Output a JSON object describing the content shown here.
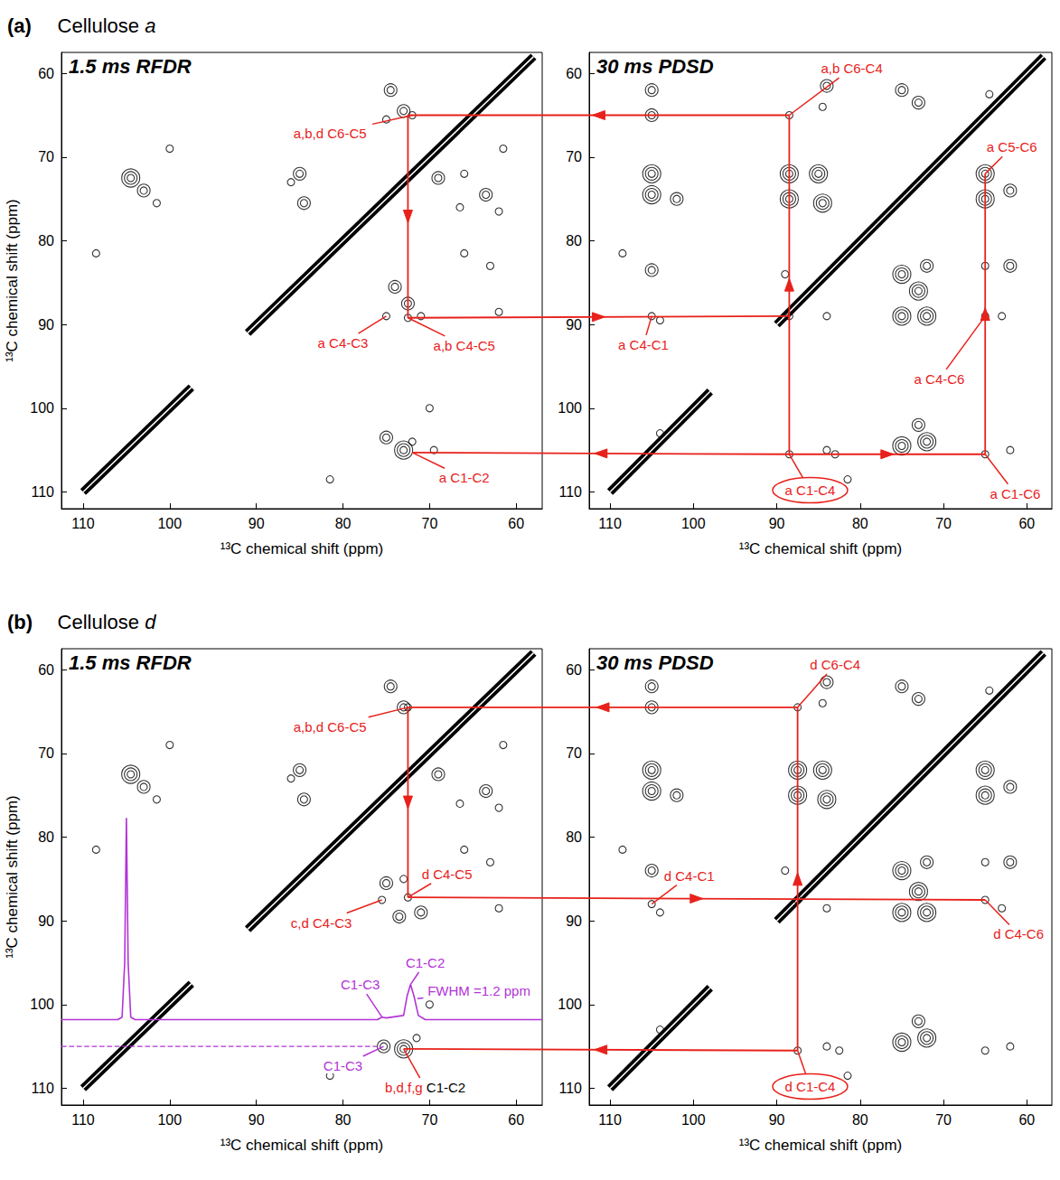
{
  "chart_data": [
    {
      "type": "scatter",
      "group_label": "(a)",
      "group_title": "Cellulose a",
      "title": "1.5 ms RFDR",
      "x_label": "¹³C chemical shift (ppm)",
      "y_label": "¹³C chemical shift (ppm)",
      "xlim": [
        112.5,
        57
      ],
      "ylim": [
        112,
        57.5
      ],
      "xticks": [
        60,
        70,
        80,
        90,
        100,
        110
      ],
      "yticks": [
        60,
        70,
        80,
        90,
        100,
        110
      ],
      "diagonal": [
        [
          110,
          97.5
        ],
        [
          91,
          58
        ]
      ],
      "peaks": [
        [
          104.5,
          72.5,
          3
        ],
        [
          103,
          74,
          2
        ],
        [
          101.5,
          75.5,
          1
        ],
        [
          108.5,
          81.5,
          1
        ],
        [
          100,
          69,
          1
        ],
        [
          85,
          72,
          2
        ],
        [
          84.5,
          75.5,
          2
        ],
        [
          86,
          73,
          1
        ],
        [
          74.5,
          62,
          2
        ],
        [
          73,
          64.5,
          2
        ],
        [
          75,
          65.5,
          1
        ],
        [
          72,
          65,
          1
        ],
        [
          61.5,
          69,
          1
        ],
        [
          69,
          72.5,
          2
        ],
        [
          66,
          72,
          1
        ],
        [
          63.5,
          74.5,
          2
        ],
        [
          62,
          76.5,
          1
        ],
        [
          66.5,
          76,
          1
        ],
        [
          74,
          85.5,
          2
        ],
        [
          72.5,
          87.5,
          2
        ],
        [
          75,
          89,
          1
        ],
        [
          72.5,
          89.2,
          1
        ],
        [
          71,
          89,
          1
        ],
        [
          66,
          81.5,
          1
        ],
        [
          63,
          83,
          1
        ],
        [
          62,
          88.5,
          1
        ],
        [
          81.5,
          108.5,
          1
        ],
        [
          70,
          100,
          1
        ],
        [
          73,
          105,
          3
        ],
        [
          75,
          103.5,
          2
        ],
        [
          72,
          104,
          1
        ],
        [
          69.5,
          105,
          1
        ]
      ],
      "annotations": [
        {
          "text": "a,b,d C6-C5",
          "color": "#e8211b",
          "x": 72,
          "y": 65,
          "label_x": 81.5,
          "label_y": 67.2
        },
        {
          "text": "a C4-C3",
          "color": "#e8211b",
          "x": 75,
          "y": 89,
          "label_x": 80,
          "label_y": 92.2
        },
        {
          "text": "a,b C4-C5",
          "color": "#e8211b",
          "x": 72.5,
          "y": 89.2,
          "label_x": 66,
          "label_y": 92.5
        },
        {
          "text": "a C1-C2",
          "color": "#e8211b",
          "x": 72,
          "y": 105.3,
          "label_x": 66,
          "label_y": 108.3
        }
      ]
    },
    {
      "type": "scatter",
      "title": "30 ms PDSD",
      "x_label": "¹³C chemical shift (ppm)",
      "xlim": [
        112.5,
        57
      ],
      "ylim": [
        112,
        57.5
      ],
      "xticks": [
        60,
        70,
        80,
        90,
        100,
        110
      ],
      "yticks": [
        60,
        70,
        80,
        90,
        100,
        110
      ],
      "diagonal": [
        [
          110,
          98
        ],
        [
          90,
          58
        ]
      ],
      "peaks": [
        [
          105,
          62,
          2
        ],
        [
          105,
          65,
          2
        ],
        [
          88.5,
          65,
          1
        ],
        [
          84,
          61.5,
          2
        ],
        [
          84.5,
          64,
          1
        ],
        [
          75,
          62,
          2
        ],
        [
          73,
          63.5,
          2
        ],
        [
          64.5,
          62.5,
          1
        ],
        [
          105,
          72,
          3
        ],
        [
          105,
          74.5,
          3
        ],
        [
          102,
          75,
          2
        ],
        [
          88.5,
          72,
          3
        ],
        [
          88.5,
          75,
          3
        ],
        [
          85,
          72,
          3
        ],
        [
          84.5,
          75.5,
          3
        ],
        [
          65,
          72,
          3
        ],
        [
          65,
          75,
          3
        ],
        [
          62,
          74,
          2
        ],
        [
          108.5,
          81.5,
          1
        ],
        [
          105,
          83.5,
          2
        ],
        [
          89,
          84,
          1
        ],
        [
          75,
          84,
          3
        ],
        [
          72,
          83,
          2
        ],
        [
          65,
          83,
          1
        ],
        [
          62,
          83,
          2
        ],
        [
          105,
          89,
          1
        ],
        [
          104,
          89.5,
          1
        ],
        [
          88.5,
          89,
          1
        ],
        [
          84,
          89,
          1
        ],
        [
          75,
          89,
          3
        ],
        [
          72,
          89,
          3
        ],
        [
          73,
          86,
          3
        ],
        [
          65,
          89,
          1
        ],
        [
          63,
          89,
          1
        ],
        [
          104,
          103,
          1
        ],
        [
          88.5,
          105.5,
          1
        ],
        [
          84,
          105,
          1
        ],
        [
          83,
          105.5,
          1
        ],
        [
          75,
          104.5,
          3
        ],
        [
          72,
          104,
          3
        ],
        [
          73,
          102,
          2
        ],
        [
          65,
          105.5,
          1
        ],
        [
          62,
          105,
          1
        ],
        [
          81.5,
          108.5,
          1
        ]
      ],
      "annotations": [
        {
          "text": "a,b C6-C4",
          "color": "#e8211b",
          "x": 88.5,
          "y": 65,
          "label_x": 81,
          "label_y": 59.4
        },
        {
          "text": "a C5-C6",
          "color": "#e8211b",
          "x": 65,
          "y": 72,
          "label_x": 61.8,
          "label_y": 68.8
        },
        {
          "text": "a C4-C1",
          "color": "#e8211b",
          "x": 105,
          "y": 89,
          "label_x": 106,
          "label_y": 92.4
        },
        {
          "text": "a C4-C6",
          "color": "#e8211b",
          "x": 65,
          "y": 89,
          "label_x": 70.5,
          "label_y": 96.5
        },
        {
          "text": "a C1-C4",
          "color": "#e8211b",
          "x": 88.5,
          "y": 105.5,
          "label_x": 86,
          "label_y": 109.8,
          "marker": "ellipse"
        },
        {
          "text": "a C1-C6",
          "color": "#e8211b",
          "x": 65,
          "y": 105.5,
          "label_x": 61.4,
          "label_y": 110.2
        }
      ]
    },
    {
      "type": "scatter",
      "group_label": "(b)",
      "group_title": "Cellulose d",
      "title": "1.5 ms RFDR",
      "x_label": "¹³C chemical shift (ppm)",
      "y_label": "¹³C chemical shift (ppm)",
      "xlim": [
        112.5,
        57
      ],
      "ylim": [
        112,
        57.5
      ],
      "xticks": [
        60,
        70,
        80,
        90,
        100,
        110
      ],
      "yticks": [
        60,
        70,
        80,
        90,
        100,
        110
      ],
      "diagonal": [
        [
          110,
          97.5
        ],
        [
          91,
          58
        ]
      ],
      "peaks": [
        [
          104.5,
          72.5,
          3
        ],
        [
          103,
          74,
          2
        ],
        [
          101.5,
          75.5,
          1
        ],
        [
          108.5,
          81.5,
          1
        ],
        [
          100,
          69,
          1
        ],
        [
          85,
          72,
          2
        ],
        [
          84.5,
          75.5,
          2
        ],
        [
          86,
          73,
          1
        ],
        [
          74.5,
          62,
          2
        ],
        [
          73,
          64.5,
          2
        ],
        [
          72.5,
          64.5,
          1
        ],
        [
          61.5,
          69,
          1
        ],
        [
          69,
          72.5,
          2
        ],
        [
          63.5,
          74.5,
          2
        ],
        [
          62,
          76.5,
          1
        ],
        [
          66.5,
          76,
          1
        ],
        [
          75,
          85.5,
          2
        ],
        [
          73,
          85,
          1
        ],
        [
          75.5,
          87.5,
          1
        ],
        [
          72.5,
          87.2,
          1
        ],
        [
          71,
          89,
          2
        ],
        [
          73.5,
          89.5,
          2
        ],
        [
          66,
          81.5,
          1
        ],
        [
          63,
          83,
          1
        ],
        [
          62,
          88.5,
          1
        ],
        [
          81.5,
          108.5,
          1
        ],
        [
          70,
          100,
          1
        ],
        [
          75.3,
          105,
          2
        ],
        [
          73,
          105.3,
          3
        ],
        [
          71.5,
          104,
          1
        ]
      ],
      "slice": {
        "color": "#b233d6",
        "points": [
          [
            112.5,
            101.8
          ],
          [
            106,
            101.8
          ],
          [
            105.5,
            101.5
          ],
          [
            105.2,
            95
          ],
          [
            105,
            77.7
          ],
          [
            104.8,
            95
          ],
          [
            104.5,
            101.5
          ],
          [
            104,
            101.8
          ],
          [
            76,
            101.8
          ],
          [
            75.5,
            101.5
          ],
          [
            75,
            101.6
          ],
          [
            73,
            101.3
          ],
          [
            72.6,
            99
          ],
          [
            72.2,
            97.6
          ],
          [
            71.8,
            99
          ],
          [
            71.3,
            101.3
          ],
          [
            70.5,
            101.8
          ],
          [
            57,
            101.8
          ]
        ]
      },
      "guide": {
        "color": "#b233d6",
        "line_style": "dashed",
        "points": [
          [
            112.5,
            105
          ],
          [
            76,
            105
          ]
        ]
      },
      "annotations": [
        {
          "text": "a,b,d C6-C5",
          "color": "#e8211b",
          "x": 72.5,
          "y": 64.5,
          "label_x": 81.5,
          "label_y": 66.8
        },
        {
          "text": "d C4-C5",
          "color": "#e8211b",
          "x": 72.5,
          "y": 87.2,
          "label_x": 68,
          "label_y": 84.4
        },
        {
          "text": "c,d C4-C3",
          "color": "#e8211b",
          "x": 75.5,
          "y": 87.5,
          "label_x": 82.5,
          "label_y": 90.2
        },
        {
          "text": "C1-C3",
          "color": "#b233d6",
          "x": 75.5,
          "y": 101.5,
          "label_x": 78,
          "label_y": 97.6
        },
        {
          "text": "C1-C2",
          "color": "#b233d6",
          "x": 72.2,
          "y": 97.6,
          "label_x": 70.5,
          "label_y": 95
        },
        {
          "text": "FWHM =1.2 ppm",
          "color": "#b233d6",
          "x": 71.4,
          "y": 99.3,
          "label_x": 64.3,
          "label_y": 98.4
        },
        {
          "text": "C1-C3",
          "color": "#b233d6",
          "x": 75.3,
          "y": 105,
          "label_x": 80,
          "label_y": 107.3
        },
        {
          "parts": [
            {
              "text": "b,d,f,g",
              "color": "#e8211b"
            },
            {
              "text": "C1-C2",
              "color": "#000000"
            }
          ],
          "x": 73,
          "y": 105.3,
          "label_x": 70.5,
          "label_y": 109.9
        }
      ]
    },
    {
      "type": "scatter",
      "title": "30 ms PDSD",
      "x_label": "¹³C chemical shift (ppm)",
      "xlim": [
        112.5,
        57
      ],
      "ylim": [
        112,
        57.5
      ],
      "xticks": [
        60,
        70,
        80,
        90,
        100,
        110
      ],
      "yticks": [
        60,
        70,
        80,
        90,
        100,
        110
      ],
      "diagonal": [
        [
          110,
          98
        ],
        [
          90,
          58
        ]
      ],
      "peaks": [
        [
          105,
          62,
          2
        ],
        [
          105,
          64.5,
          2
        ],
        [
          87.5,
          64.5,
          1
        ],
        [
          84,
          61.5,
          2
        ],
        [
          84.5,
          64,
          1
        ],
        [
          75,
          62,
          2
        ],
        [
          73,
          63.5,
          2
        ],
        [
          64.5,
          62.5,
          1
        ],
        [
          105,
          72,
          3
        ],
        [
          105,
          74.5,
          3
        ],
        [
          102,
          75,
          2
        ],
        [
          87.5,
          72,
          3
        ],
        [
          87.5,
          75,
          3
        ],
        [
          84.5,
          72,
          3
        ],
        [
          84,
          75.5,
          3
        ],
        [
          65,
          72,
          3
        ],
        [
          65,
          75,
          3
        ],
        [
          62,
          74,
          2
        ],
        [
          108.5,
          81.5,
          1
        ],
        [
          105,
          84,
          2
        ],
        [
          89,
          84,
          1
        ],
        [
          75,
          84,
          3
        ],
        [
          72,
          83,
          2
        ],
        [
          65,
          83,
          1
        ],
        [
          62,
          83,
          2
        ],
        [
          105,
          88,
          1
        ],
        [
          104,
          89,
          1
        ],
        [
          87.5,
          87.5,
          1
        ],
        [
          84,
          88.5,
          1
        ],
        [
          75,
          89,
          3
        ],
        [
          72,
          89,
          3
        ],
        [
          73,
          86.5,
          3
        ],
        [
          65,
          87.5,
          1
        ],
        [
          63,
          88.5,
          1
        ],
        [
          104,
          103,
          1
        ],
        [
          87.5,
          105.5,
          1
        ],
        [
          84,
          105,
          1
        ],
        [
          82.5,
          105.5,
          1
        ],
        [
          75,
          104.5,
          3
        ],
        [
          72,
          104,
          3
        ],
        [
          73,
          102,
          2
        ],
        [
          65,
          105.5,
          1
        ],
        [
          62,
          105,
          1
        ],
        [
          81.5,
          108.5,
          1
        ]
      ],
      "annotations": [
        {
          "text": "d C6-C4",
          "color": "#e8211b",
          "x": 87.5,
          "y": 64.5,
          "label_x": 83,
          "label_y": 59.4
        },
        {
          "text": "d C4-C1",
          "color": "#e8211b",
          "x": 105,
          "y": 88,
          "label_x": 100.5,
          "label_y": 84.6
        },
        {
          "text": "d C4-C6",
          "color": "#e8211b",
          "x": 65,
          "y": 87.5,
          "label_x": 61,
          "label_y": 91.6
        },
        {
          "text": "d C1-C4",
          "color": "#e8211b",
          "x": 87.5,
          "y": 105.5,
          "label_x": 86,
          "label_y": 109.8,
          "marker": "ellipse"
        }
      ]
    }
  ],
  "arrows": [
    {
      "color": "#e8211b",
      "from": [
        1,
        88.5,
        65
      ],
      "to": [
        0,
        72.5,
        65
      ]
    },
    {
      "color": "#e8211b",
      "from": [
        0,
        72.5,
        65
      ],
      "to": [
        0,
        72.5,
        89.2
      ]
    },
    {
      "color": "#e8211b",
      "from": [
        0,
        72.5,
        89.2
      ],
      "to": [
        1,
        88.5,
        89
      ]
    },
    {
      "color": "#e8211b",
      "from": [
        1,
        88.5,
        105.5
      ],
      "to": [
        1,
        88.5,
        65
      ]
    },
    {
      "color": "#e8211b",
      "from": [
        1,
        88.5,
        105.5
      ],
      "to": [
        0,
        72,
        105.3
      ]
    },
    {
      "color": "#e8211b",
      "from": [
        1,
        88.5,
        105.5
      ],
      "to": [
        1,
        65,
        105.5
      ]
    },
    {
      "color": "#e8211b",
      "from": [
        1,
        65,
        105.5
      ],
      "to": [
        1,
        65,
        72
      ]
    },
    {
      "color": "#e8211b",
      "from": [
        3,
        87.5,
        64.5
      ],
      "to": [
        2,
        72.5,
        64.5
      ]
    },
    {
      "color": "#e8211b",
      "from": [
        2,
        72.5,
        64.5
      ],
      "to": [
        2,
        72.5,
        87.2
      ]
    },
    {
      "color": "#e8211b",
      "from": [
        2,
        72.5,
        87.2
      ],
      "to": [
        3,
        65,
        87.5
      ]
    },
    {
      "color": "#e8211b",
      "from": [
        3,
        87.5,
        105.5
      ],
      "to": [
        3,
        87.5,
        64.5
      ]
    },
    {
      "color": "#e8211b",
      "from": [
        3,
        87.5,
        105.5
      ],
      "to": [
        2,
        73,
        105.3
      ]
    }
  ]
}
